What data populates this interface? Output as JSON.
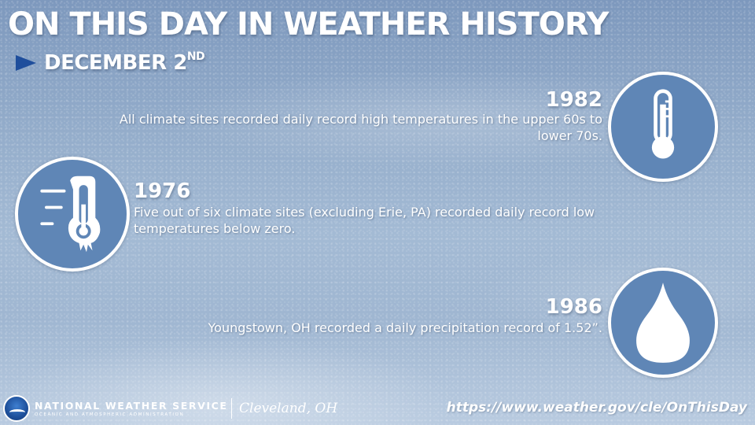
{
  "header": {
    "title": "ON THIS DAY IN WEATHER HISTORY",
    "date_main": "DECEMBER 2",
    "date_suffix": "ND"
  },
  "events": [
    {
      "year": "1982",
      "icon": "thermometer-icon",
      "text": "All climate sites recorded daily record high temperatures in the upper 60s to lower 70s."
    },
    {
      "year": "1976",
      "icon": "frozen-thermometer-icon",
      "text": "Five out of six climate sites (excluding Erie, PA) recorded daily record low temperatures below zero."
    },
    {
      "year": "1986",
      "icon": "raindrop-icon",
      "text": "Youngstown, OH recorded a daily precipitation record of 1.52”."
    }
  ],
  "footer": {
    "agency": "NATIONAL WEATHER SERVICE",
    "agency_sub": "OCEANIC AND ATMOSPHERIC ADMINISTRATION",
    "logo_text": "NOAA",
    "office": "Cleveland, OH",
    "url": "https://www.weather.gov/cle/OnThisDay"
  },
  "colors": {
    "accent_arrow": "#1f4e9c",
    "icon_circle": "#5f86b6",
    "text": "#ffffff"
  }
}
